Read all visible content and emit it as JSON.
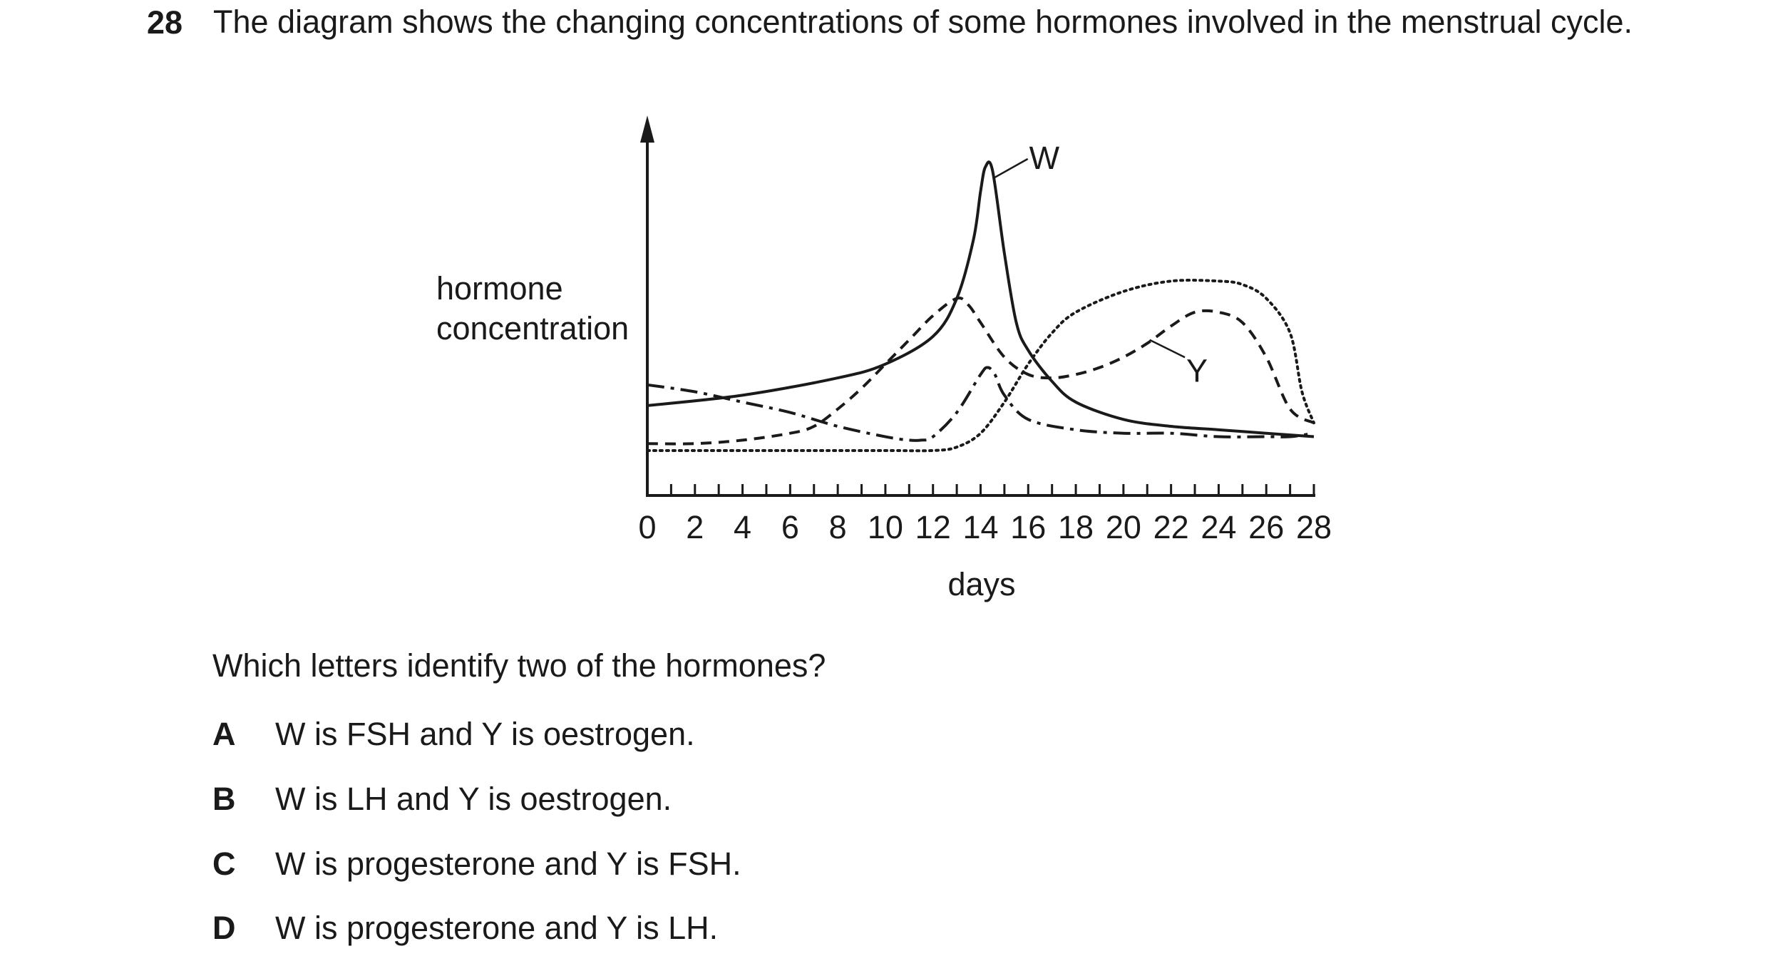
{
  "question": {
    "number": "28",
    "text": "The diagram shows the changing concentrations of some hormones involved in the menstrual cycle."
  },
  "chart_data": {
    "type": "line",
    "title": "",
    "ylabel_lines": [
      "hormone",
      "concentration"
    ],
    "xlabel": "days",
    "xlim": [
      0,
      28
    ],
    "ylim": [
      0,
      100
    ],
    "x_ticks": [
      "0",
      "2",
      "4",
      "6",
      "8",
      "10",
      "12",
      "14",
      "16",
      "18",
      "20",
      "22",
      "24",
      "26",
      "28"
    ],
    "grid": false,
    "legend": "none",
    "series": [
      {
        "style": "solid",
        "x": [
          0,
          4,
          8,
          10,
          12,
          13,
          13.7,
          14,
          14.2,
          14.5,
          15,
          15.5,
          16,
          17,
          18,
          20,
          22,
          24,
          26,
          28
        ],
        "y": [
          26,
          29,
          34,
          38,
          46,
          57,
          74,
          88,
          95,
          94,
          70,
          50,
          42,
          33,
          27,
          22,
          20,
          19,
          18,
          17
        ]
      },
      {
        "style": "dash-dot",
        "x": [
          0,
          2,
          4,
          6,
          8,
          10,
          11,
          11.5,
          12,
          13,
          14,
          14.3,
          14.6,
          15,
          16,
          18,
          20,
          22,
          24,
          26,
          27,
          28
        ],
        "y": [
          32,
          30,
          27,
          24,
          20,
          17,
          16,
          16,
          17,
          24,
          35,
          37,
          35,
          29,
          22,
          19,
          18,
          18,
          17,
          17,
          17,
          18
        ]
      },
      {
        "style": "dashed",
        "x": [
          0,
          2,
          4,
          6,
          7,
          8,
          9,
          10,
          11,
          12,
          13,
          13.5,
          14,
          15,
          16,
          17,
          18,
          19,
          20,
          21,
          22,
          23,
          24,
          25,
          26,
          27,
          28
        ],
        "y": [
          15,
          15,
          16,
          18,
          20,
          25,
          31,
          38,
          45,
          52,
          57,
          55,
          50,
          40,
          35,
          34,
          35,
          37,
          40,
          44,
          49,
          53,
          53,
          50,
          40,
          25,
          21
        ]
      },
      {
        "style": "dotted",
        "x": [
          0,
          6,
          10,
          12,
          13,
          14,
          15,
          16,
          17,
          18,
          20,
          22,
          24,
          25,
          26,
          27,
          27.5,
          28
        ],
        "y": [
          13,
          13,
          13,
          13,
          14,
          18,
          27,
          38,
          47,
          53,
          59,
          62,
          62,
          61,
          57,
          47,
          30,
          21
        ]
      }
    ],
    "annotations": [
      {
        "text": "W",
        "series_index": 0,
        "point": [
          14.6,
          92
        ],
        "label": [
          16.4,
          99
        ]
      },
      {
        "text": "Y",
        "series_index": 2,
        "point": [
          21.1,
          45
        ],
        "label": [
          23,
          35
        ]
      }
    ]
  },
  "prompt": "Which letters identify two of the hormones?",
  "options": [
    {
      "letter": "A",
      "text": "W is FSH and Y is oestrogen."
    },
    {
      "letter": "B",
      "text": "W is LH and Y is oestrogen."
    },
    {
      "letter": "C",
      "text": "W is progesterone and Y is FSH."
    },
    {
      "letter": "D",
      "text": "W is progesterone and Y is LH."
    }
  ]
}
